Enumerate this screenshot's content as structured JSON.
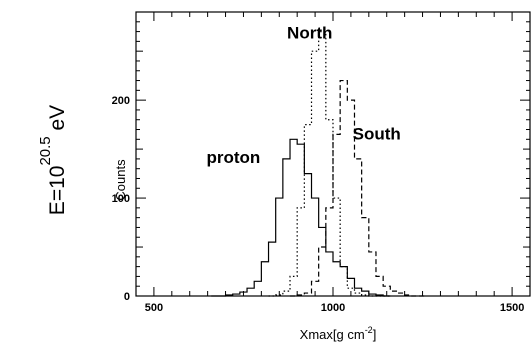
{
  "chart_data": {
    "type": "line",
    "step": true,
    "xlabel": "Xmax[g cm",
    "xlabel_exp": "-2",
    "xlabel_close": "]",
    "ylabel": "Counts",
    "side_label": {
      "base": "E=10",
      "exponent": "20.5",
      "unit": " eV"
    },
    "xlim": [
      450,
      1550
    ],
    "ylim": [
      0,
      290
    ],
    "x_ticks": [
      500,
      1000,
      1500
    ],
    "y_ticks": [
      0,
      100,
      200
    ],
    "grid": false,
    "bin_width": 20,
    "annotations": [
      {
        "text": "North",
        "x": 935,
        "y": 263
      },
      {
        "text": "South",
        "x": 1122,
        "y": 160
      },
      {
        "text": "proton",
        "x": 722,
        "y": 136
      }
    ],
    "series": [
      {
        "name": "proton",
        "style": "solid",
        "x": [
          660,
          680,
          700,
          720,
          740,
          760,
          780,
          800,
          820,
          840,
          860,
          880,
          900,
          920,
          940,
          960,
          980,
          1000,
          1020,
          1040,
          1060,
          1080,
          1100,
          1120,
          1140
        ],
        "values": [
          0,
          0,
          1,
          2,
          4,
          8,
          15,
          35,
          55,
          100,
          140,
          160,
          155,
          125,
          100,
          70,
          45,
          35,
          30,
          18,
          8,
          5,
          2,
          1,
          0
        ]
      },
      {
        "name": "North",
        "style": "dotted",
        "x": [
          820,
          840,
          860,
          880,
          900,
          920,
          940,
          960,
          980,
          1000,
          1020,
          1040,
          1060,
          1080,
          1100,
          1120,
          1140
        ],
        "values": [
          0,
          1,
          5,
          20,
          90,
          175,
          250,
          270,
          180,
          100,
          30,
          8,
          3,
          1,
          0,
          0,
          0
        ]
      },
      {
        "name": "South",
        "style": "dashed",
        "x": [
          880,
          900,
          920,
          940,
          960,
          980,
          1000,
          1020,
          1040,
          1060,
          1080,
          1100,
          1120,
          1140,
          1160,
          1180,
          1200,
          1220,
          1240
        ],
        "values": [
          0,
          1,
          3,
          15,
          50,
          90,
          165,
          220,
          200,
          140,
          80,
          45,
          20,
          10,
          5,
          3,
          1,
          0,
          0
        ]
      }
    ]
  }
}
